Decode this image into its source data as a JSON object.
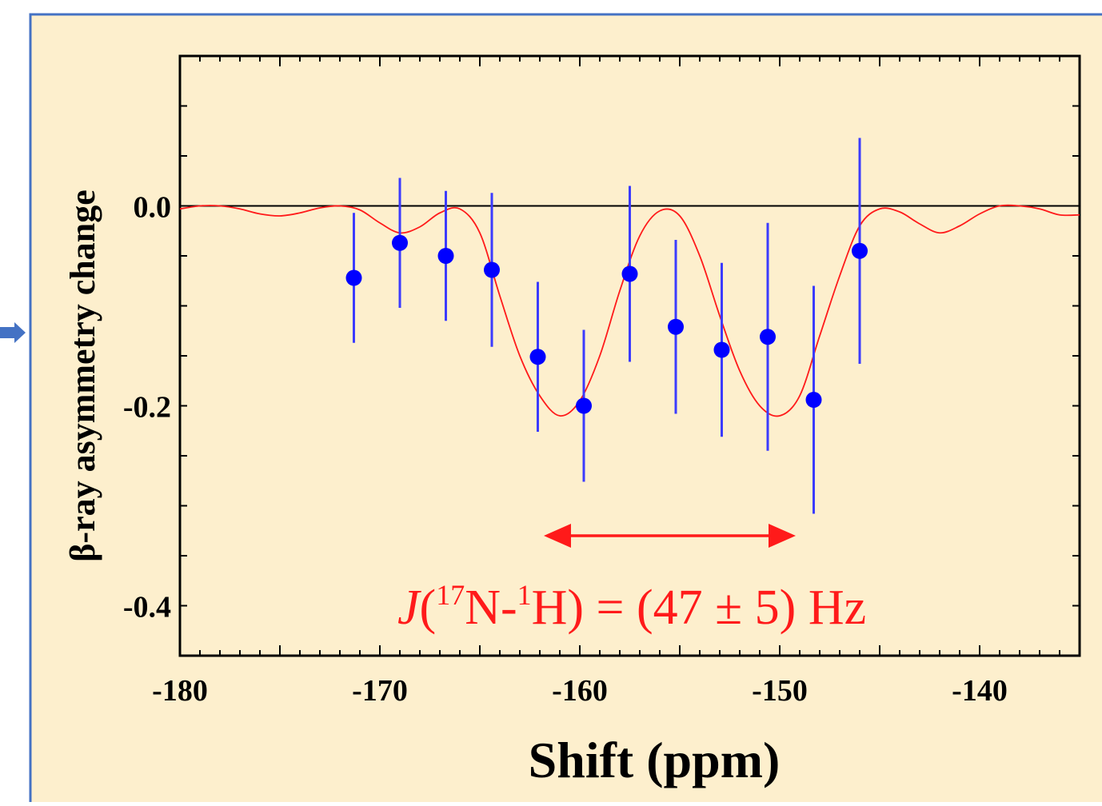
{
  "colors": {
    "panel_background": "#fdefcd",
    "panel_border": "#4472c4",
    "marker": "#0000ff",
    "error_bar": "#3b3bff",
    "fit_line": "#ff1a1a",
    "annotation": "#ff1a1a",
    "axis": "#000000",
    "side_arrow": "#4472c4"
  },
  "chart_data": {
    "type": "scatter",
    "xlabel": "Shift (ppm)",
    "ylabel": "β-ray asymmetry change",
    "xlim": [
      -180,
      -135
    ],
    "ylim": [
      -0.45,
      0.15
    ],
    "x_ticks": [
      -180,
      -170,
      -160,
      -150,
      -140
    ],
    "x_tick_labels": [
      "-180",
      "-170",
      "-160",
      "-150",
      "-140"
    ],
    "y_ticks": [
      0.0,
      -0.2,
      -0.4
    ],
    "y_tick_labels": [
      "0.0",
      "-0.2",
      "-0.4"
    ],
    "zero_line": 0.0,
    "grid": false,
    "series": [
      {
        "type": "scatter_with_error_bars",
        "x": [
          -171.3,
          -169.0,
          -166.7,
          -164.4,
          -162.1,
          -159.8,
          -157.5,
          -155.2,
          -152.9,
          -150.6,
          -148.3,
          -146.0
        ],
        "y": [
          -0.072,
          -0.037,
          -0.05,
          -0.064,
          -0.151,
          -0.2,
          -0.068,
          -0.121,
          -0.144,
          -0.131,
          -0.194,
          -0.045
        ],
        "yerr": [
          0.065,
          0.065,
          0.065,
          0.077,
          0.075,
          0.076,
          0.088,
          0.087,
          0.087,
          0.114,
          0.114,
          0.113
        ]
      },
      {
        "type": "line",
        "x": [
          -180,
          -179,
          -178,
          -177,
          -176,
          -175,
          -174,
          -173,
          -172,
          -171,
          -170,
          -169,
          -168,
          -167,
          -166,
          -165,
          -164,
          -163,
          -162,
          -161,
          -160,
          -159,
          -158,
          -157,
          -156,
          -155,
          -154,
          -153,
          -152,
          -151,
          -150,
          -149,
          -148,
          -147,
          -146,
          -145,
          -144,
          -143,
          -142,
          -141,
          -140,
          -139,
          -138,
          -137,
          -136,
          -135
        ],
        "y": [
          -0.003,
          0.0,
          0.0,
          -0.003,
          -0.008,
          -0.01,
          -0.007,
          -0.002,
          0.0,
          -0.004,
          -0.017,
          -0.027,
          -0.021,
          -0.007,
          -0.003,
          -0.027,
          -0.09,
          -0.15,
          -0.19,
          -0.21,
          -0.195,
          -0.15,
          -0.085,
          -0.03,
          -0.005,
          -0.01,
          -0.05,
          -0.11,
          -0.165,
          -0.2,
          -0.21,
          -0.19,
          -0.13,
          -0.07,
          -0.02,
          -0.003,
          -0.006,
          -0.018,
          -0.027,
          -0.02,
          -0.008,
          0.0,
          0.0,
          -0.003,
          -0.009,
          -0.009
        ]
      }
    ],
    "annotations": [
      {
        "type": "double_arrow",
        "x_start": -161.8,
        "x_end": -149.2,
        "y": -0.33
      },
      {
        "type": "text",
        "x": -158,
        "y": -0.4,
        "label": "J(17N-1H) = (47 ± 5) Hz"
      }
    ]
  },
  "annotation_parts": {
    "italic_j": "J",
    "open_paren": "(",
    "sup_17": "17",
    "n_dash": "N-",
    "sup_1": "1",
    "h_rest": "H) = (47 ± 5) Hz"
  }
}
